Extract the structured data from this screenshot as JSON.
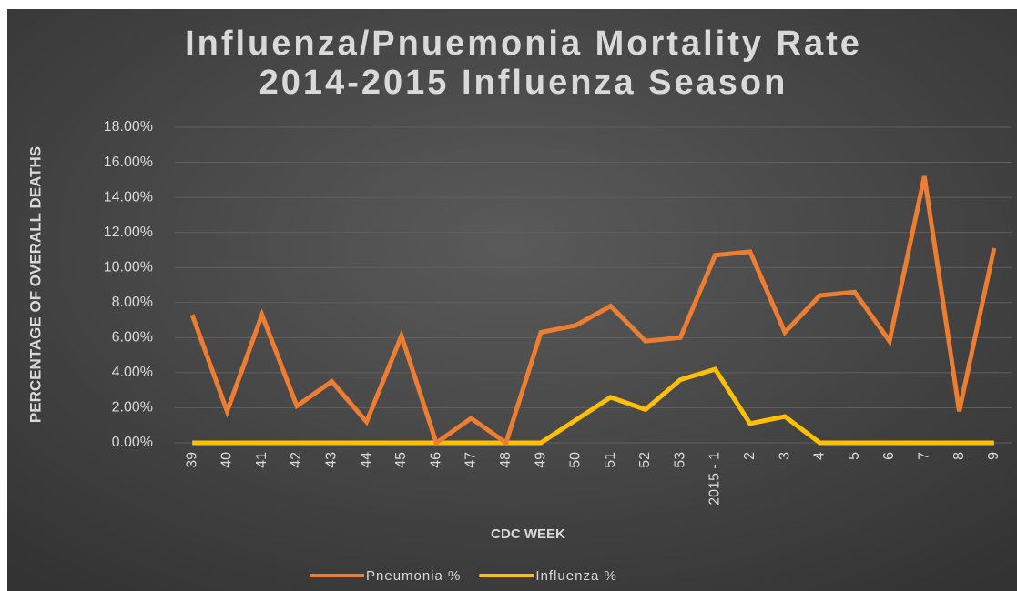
{
  "chart_data": {
    "type": "line",
    "title": "Influenza/Pnuemonia Mortality Rate",
    "subtitle": "2014-2015 Influenza Season",
    "x_label": "CDC WEEK",
    "y_label": "PERCENTAGE OF OVERALL DEATHS",
    "categories": [
      "39",
      "40",
      "41",
      "42",
      "43",
      "44",
      "45",
      "46",
      "47",
      "48",
      "49",
      "50",
      "51",
      "52",
      "53",
      "2015 - 1",
      "2",
      "3",
      "4",
      "5",
      "6",
      "7",
      "8",
      "9"
    ],
    "series": [
      {
        "name": "Pneumonia %",
        "color": "#ed7d31",
        "values": [
          7.3,
          1.8,
          7.3,
          2.1,
          3.5,
          1.2,
          6.1,
          0,
          1.4,
          0,
          6.3,
          6.7,
          7.8,
          5.8,
          6.0,
          10.7,
          10.9,
          6.3,
          8.4,
          8.6,
          5.8,
          15.2,
          1.8,
          11.1
        ]
      },
      {
        "name": "Influenza %",
        "color": "#ffc000",
        "values": [
          0,
          0,
          0,
          0,
          0,
          0,
          0,
          0,
          0,
          0,
          0,
          1.3,
          2.6,
          1.9,
          3.6,
          4.2,
          1.1,
          1.5,
          0,
          0,
          0,
          0,
          0,
          0
        ]
      }
    ],
    "ylim": [
      0,
      18
    ],
    "yticks": [
      {
        "value": 0,
        "label": "0.00%"
      },
      {
        "value": 2,
        "label": "2.00%"
      },
      {
        "value": 4,
        "label": "4.00%"
      },
      {
        "value": 6,
        "label": "6.00%"
      },
      {
        "value": 8,
        "label": "8.00%"
      },
      {
        "value": 10,
        "label": "10.00%"
      },
      {
        "value": 12,
        "label": "12.00%"
      },
      {
        "value": 14,
        "label": "14.00%"
      },
      {
        "value": 16,
        "label": "16.00%"
      },
      {
        "value": 18,
        "label": "18.00%"
      }
    ],
    "grid": true,
    "legend": "bottom"
  }
}
